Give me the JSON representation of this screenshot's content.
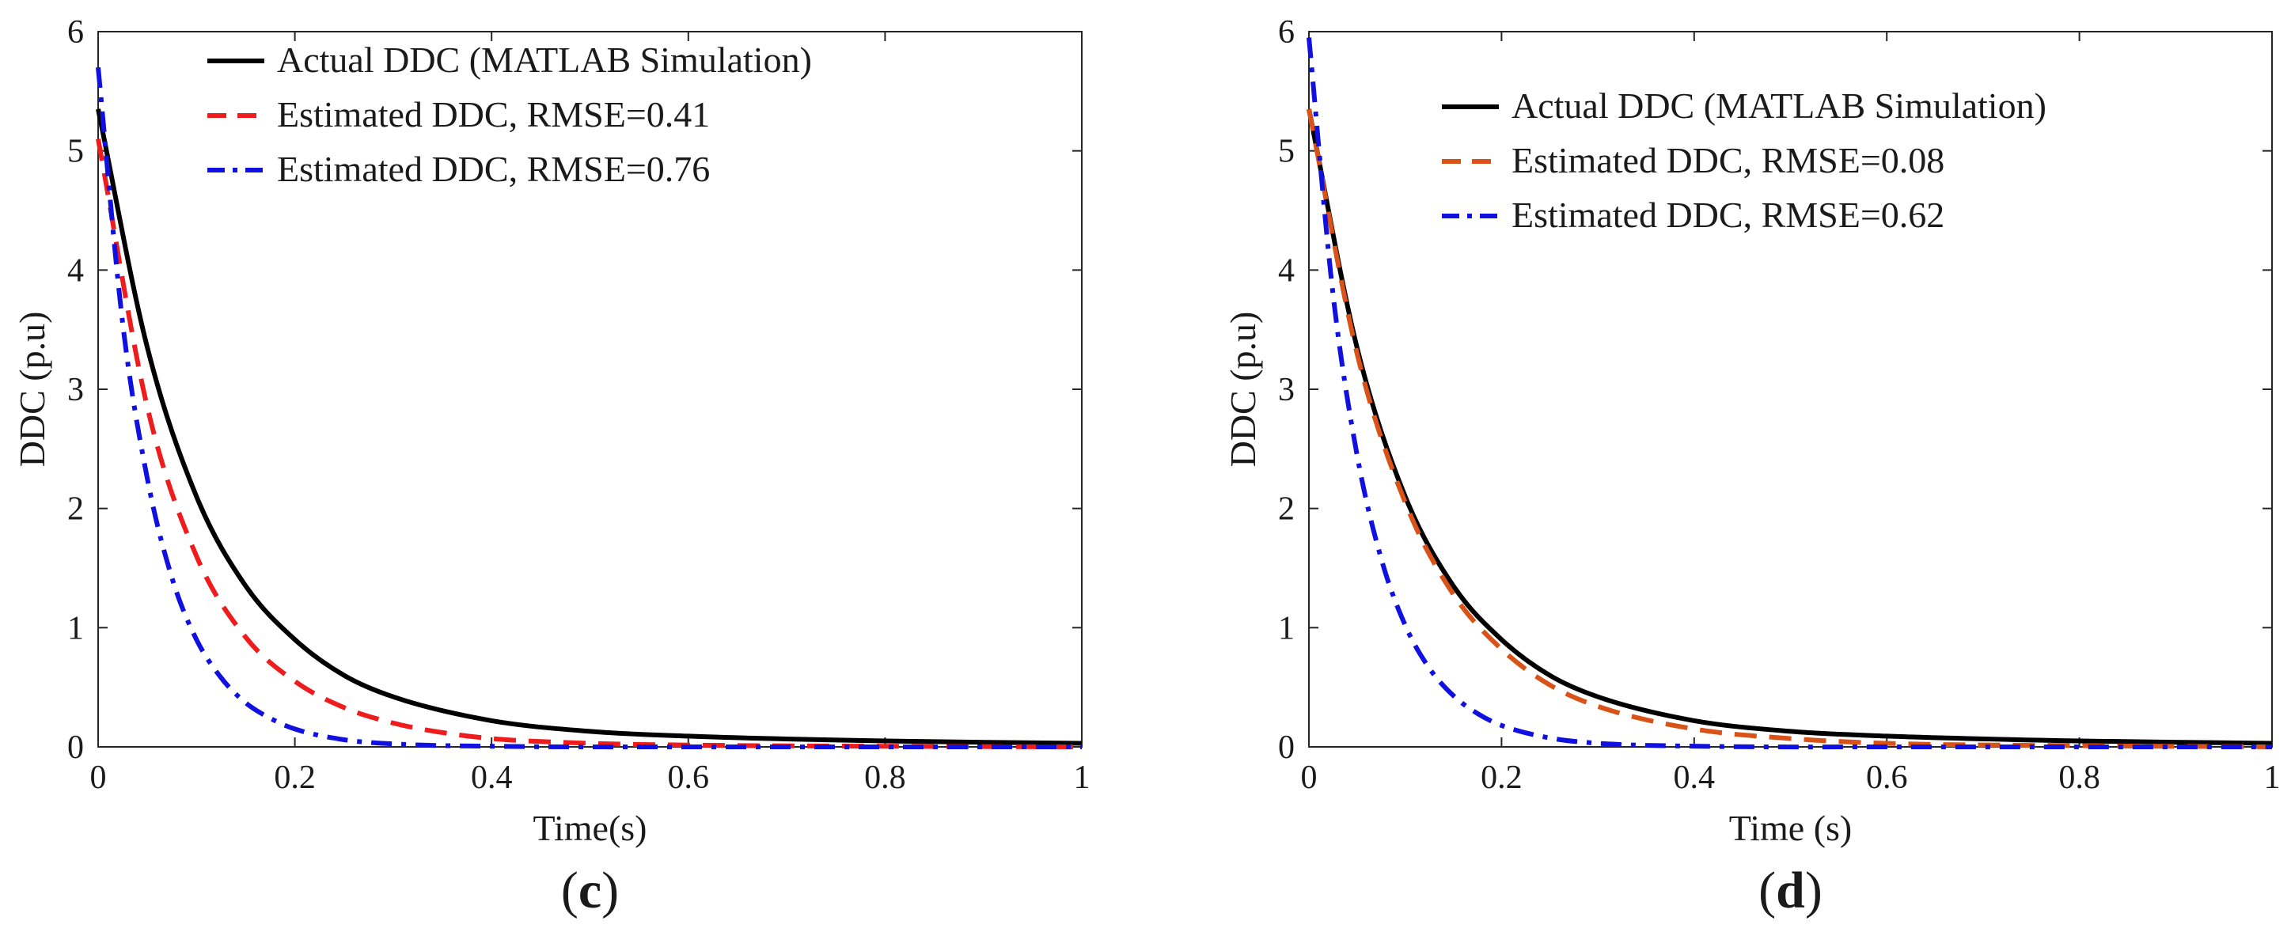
{
  "chart_data": [
    {
      "type": "line",
      "panel_label": {
        "open": "(",
        "letter": "c",
        "close": ")"
      },
      "xlabel": "Time(s)",
      "ylabel": "DDC (p.u)",
      "xlim": [
        0,
        1
      ],
      "ylim": [
        0,
        6
      ],
      "xticks": [
        0,
        0.2,
        0.4,
        0.6,
        0.8,
        1
      ],
      "xtick_labels": [
        "0",
        "0.2",
        "0.4",
        "0.6",
        "0.8",
        "1"
      ],
      "yticks": [
        0,
        1,
        2,
        3,
        4,
        5,
        6
      ],
      "ytick_labels": [
        "0",
        "1",
        "2",
        "3",
        "4",
        "5",
        "6"
      ],
      "legend_position": "top-right",
      "series": [
        {
          "name": "Actual DDC (MATLAB Simulation)",
          "color": "#000000",
          "style": "solid",
          "x": [
            0,
            0.05,
            0.1,
            0.15,
            0.2,
            0.25,
            0.3,
            0.4,
            0.5,
            0.6,
            0.8,
            1.0
          ],
          "y": [
            5.35,
            3.35,
            2.1,
            1.35,
            0.9,
            0.6,
            0.42,
            0.22,
            0.13,
            0.09,
            0.05,
            0.03
          ]
        },
        {
          "name": "Estimated DDC, RMSE=0.41",
          "color": "#ee1c1c",
          "style": "dashed",
          "x": [
            0,
            0.05,
            0.1,
            0.15,
            0.2,
            0.25,
            0.3,
            0.35,
            0.4,
            0.5,
            0.6,
            0.8,
            1.0
          ],
          "y": [
            5.1,
            2.85,
            1.6,
            0.92,
            0.55,
            0.33,
            0.2,
            0.12,
            0.07,
            0.03,
            0.015,
            0.005,
            0.0
          ]
        },
        {
          "name": "Estimated DDC, RMSE=0.76",
          "color": "#1010e0",
          "style": "dashdot",
          "x": [
            0,
            0.025,
            0.05,
            0.075,
            0.1,
            0.125,
            0.15,
            0.175,
            0.2,
            0.25,
            0.3,
            0.4,
            0.6,
            1.0
          ],
          "y": [
            5.7,
            3.55,
            2.25,
            1.42,
            0.9,
            0.58,
            0.37,
            0.24,
            0.15,
            0.06,
            0.025,
            0.005,
            0.0,
            0.0
          ]
        }
      ]
    },
    {
      "type": "line",
      "panel_label": {
        "open": "(",
        "letter": "d",
        "close": ")"
      },
      "xlabel": "Time (s)",
      "ylabel": "DDC (p.u)",
      "xlim": [
        0,
        1
      ],
      "ylim": [
        0,
        6
      ],
      "xticks": [
        0,
        0.2,
        0.4,
        0.6,
        0.8,
        1
      ],
      "xtick_labels": [
        "0",
        "0.2",
        "0.4",
        "0.6",
        "0.8",
        "1"
      ],
      "yticks": [
        0,
        1,
        2,
        3,
        4,
        5,
        6
      ],
      "ytick_labels": [
        "0",
        "1",
        "2",
        "3",
        "4",
        "5",
        "6"
      ],
      "legend_position": "top-right",
      "series": [
        {
          "name": "Actual DDC (MATLAB Simulation)",
          "color": "#000000",
          "style": "solid",
          "x": [
            0,
            0.05,
            0.1,
            0.15,
            0.2,
            0.25,
            0.3,
            0.4,
            0.5,
            0.6,
            0.8,
            1.0
          ],
          "y": [
            5.35,
            3.35,
            2.1,
            1.35,
            0.9,
            0.6,
            0.42,
            0.22,
            0.13,
            0.09,
            0.05,
            0.03
          ]
        },
        {
          "name": "Estimated DDC, RMSE=0.08",
          "color": "#d95319",
          "style": "dashed",
          "x": [
            0,
            0.05,
            0.1,
            0.15,
            0.2,
            0.25,
            0.3,
            0.4,
            0.5,
            0.6,
            0.8,
            1.0
          ],
          "y": [
            5.35,
            3.3,
            2.05,
            1.28,
            0.82,
            0.52,
            0.34,
            0.15,
            0.07,
            0.03,
            0.01,
            0.0
          ]
        },
        {
          "name": "Estimated DDC, RMSE=0.62",
          "color": "#1010e0",
          "style": "dashdot",
          "x": [
            0,
            0.025,
            0.05,
            0.075,
            0.1,
            0.125,
            0.15,
            0.175,
            0.2,
            0.25,
            0.3,
            0.4,
            0.6,
            1.0
          ],
          "y": [
            5.95,
            3.8,
            2.45,
            1.58,
            1.02,
            0.66,
            0.43,
            0.28,
            0.18,
            0.075,
            0.03,
            0.006,
            0.0,
            0.0
          ]
        }
      ]
    }
  ]
}
